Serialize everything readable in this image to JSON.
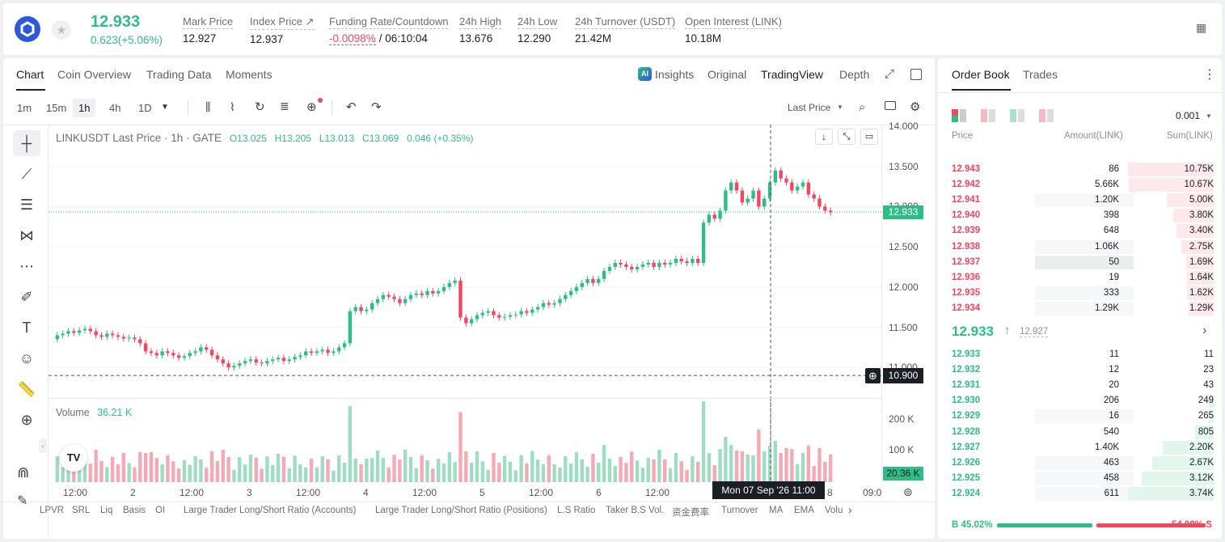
{
  "header": {
    "price": "12.933",
    "change": "0.623(+5.06%)",
    "stats": [
      {
        "label": "Mark Price",
        "value": "12.927"
      },
      {
        "label": "Index Price ↗",
        "value": "12.937"
      },
      {
        "label": "Funding Rate/Countdown",
        "value_red": "-0.0098%",
        "value": "/ 06:10:04"
      },
      {
        "label": "24h High",
        "value": "13.676"
      },
      {
        "label": "24h Low",
        "value": "12.290"
      },
      {
        "label": "24h Turnover (USDT)",
        "value": "21.42M"
      },
      {
        "label": "Open Interest (LINK)",
        "value": "10.18M"
      }
    ]
  },
  "chart_tabs": [
    "Chart",
    "Coin Overview",
    "Trading Data",
    "Moments"
  ],
  "chart_views": {
    "insights": "Insights",
    "original": "Original",
    "tradingview": "TradingView",
    "depth": "Depth"
  },
  "intervals": [
    "1m",
    "15m",
    "1h",
    "4h",
    "1D"
  ],
  "price_type": "Last Price",
  "legend": {
    "symbol": "LINKUSDT Last Price · 1h · GATE",
    "o": "O13.025",
    "h": "H13.205",
    "l": "L13.013",
    "c": "C13.069",
    "chg": "0.046 (+0.35%)"
  },
  "volume_label": "Volume",
  "volume_value": "36.21 K",
  "yaxis": [
    "14.000",
    "13.500",
    "13.000",
    "12.500",
    "12.000",
    "11.500",
    "11.000"
  ],
  "vol_axis": [
    "200 K",
    "100 K"
  ],
  "current_price_tag": "12.933",
  "crosshair_price": "10.900",
  "vol_tag": "20.36 K",
  "xaxis": [
    "12:00",
    "2",
    "12:00",
    "3",
    "12:00",
    "4",
    "12:00",
    "5",
    "12:00",
    "6",
    "12:00",
    "8",
    "09:0"
  ],
  "crosshair_time": "Mon 07 Sep '26   11:00",
  "indicators": [
    "LPVR",
    "SRL",
    "Liq",
    "Basis",
    "OI",
    "Large Trader Long/Short Ratio (Accounts)",
    "Large Trader Long/Short Ratio (Positions)",
    "L.S Ratio",
    "Taker B.S Vol.",
    "资金费率",
    "Turnover",
    "MA",
    "EMA",
    "Volu"
  ],
  "orderbook": {
    "tabs": [
      "Order Book",
      "Trades"
    ],
    "precision": "0.001",
    "cols": {
      "price": "Price",
      "amount": "Amount(LINK)",
      "sum": "Sum(LINK)"
    },
    "asks": [
      {
        "p": "12.943",
        "a": "86",
        "s": "10.75K",
        "w": 1.0,
        "aw": 0.0
      },
      {
        "p": "12.942",
        "a": "5.66K",
        "s": "10.67K",
        "w": 0.99,
        "aw": 0.0
      },
      {
        "p": "12.941",
        "a": "1.20K",
        "s": "5.00K",
        "w": 0.55,
        "aw": 0.95
      },
      {
        "p": "12.940",
        "a": "398",
        "s": "3.80K",
        "w": 0.47,
        "aw": 0.0
      },
      {
        "p": "12.939",
        "a": "648",
        "s": "3.40K",
        "w": 0.43,
        "aw": 0.0
      },
      {
        "p": "12.938",
        "a": "1.06K",
        "s": "2.75K",
        "w": 0.38,
        "aw": 0.95
      },
      {
        "p": "12.937",
        "a": "50",
        "s": "1.69K",
        "w": 0.32,
        "aw": 1.0
      },
      {
        "p": "12.936",
        "a": "19",
        "s": "1.64K",
        "w": 0.31,
        "aw": 0.0
      },
      {
        "p": "12.935",
        "a": "333",
        "s": "1.62K",
        "w": 0.31,
        "aw": 0.95
      },
      {
        "p": "12.934",
        "a": "1.29K",
        "s": "1.29K",
        "w": 0.29,
        "aw": 0.95
      }
    ],
    "mid": "12.933",
    "mark": "12.927",
    "bids": [
      {
        "p": "12.933",
        "a": "11",
        "s": "11",
        "w": 0.0,
        "aw": 0.0
      },
      {
        "p": "12.932",
        "a": "12",
        "s": "23",
        "w": 0.0,
        "aw": 0.0
      },
      {
        "p": "12.931",
        "a": "20",
        "s": "43",
        "w": 0.0,
        "aw": 0.0
      },
      {
        "p": "12.930",
        "a": "206",
        "s": "249",
        "w": 0.06,
        "aw": 0.0
      },
      {
        "p": "12.929",
        "a": "16",
        "s": "265",
        "w": 0.06,
        "aw": 0.95
      },
      {
        "p": "12.928",
        "a": "540",
        "s": "805",
        "w": 0.22,
        "aw": 0.0
      },
      {
        "p": "12.927",
        "a": "1.40K",
        "s": "2.20K",
        "w": 0.59,
        "aw": 0.0
      },
      {
        "p": "12.926",
        "a": "463",
        "s": "2.67K",
        "w": 0.72,
        "aw": 0.95
      },
      {
        "p": "12.925",
        "a": "458",
        "s": "3.12K",
        "w": 0.84,
        "aw": 0.95
      },
      {
        "p": "12.924",
        "a": "611",
        "s": "3.74K",
        "w": 1.0,
        "aw": 0.95
      }
    ],
    "buy_pct": "B 45.02%",
    "sell_pct": "54.98% S",
    "buy_ratio": 0.4502
  },
  "colors": {
    "up": "#2ebd85",
    "down": "#f6465d",
    "brand": "#2a5ada"
  }
}
